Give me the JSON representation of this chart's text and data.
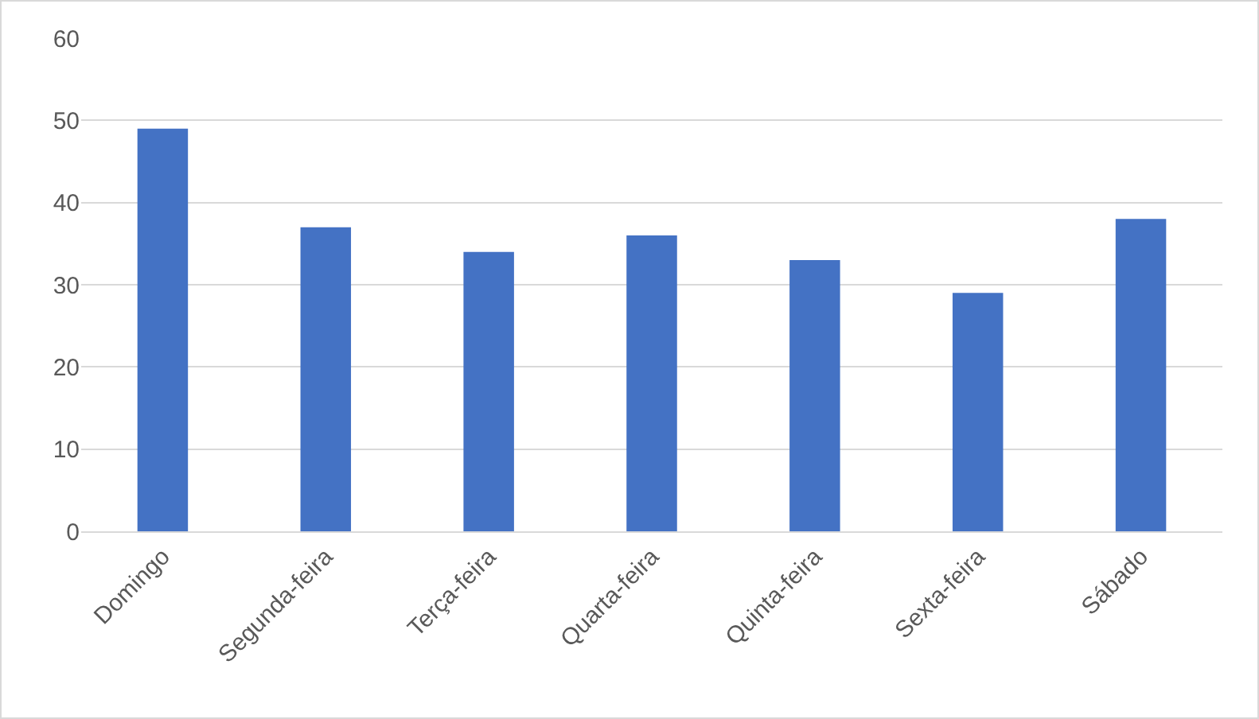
{
  "chart_data": {
    "type": "bar",
    "categories": [
      "Domingo",
      "Segunda-feira",
      "Terça-feira",
      "Quarta-feira",
      "Quinta-feira",
      "Sexta-feira",
      "Sábado"
    ],
    "values": [
      49,
      37,
      34,
      36,
      33,
      29,
      38
    ],
    "color": "#4472c4",
    "ylim": [
      0,
      60
    ],
    "yticks": [
      0,
      10,
      20,
      30,
      40,
      50,
      60
    ],
    "grid": "y"
  }
}
